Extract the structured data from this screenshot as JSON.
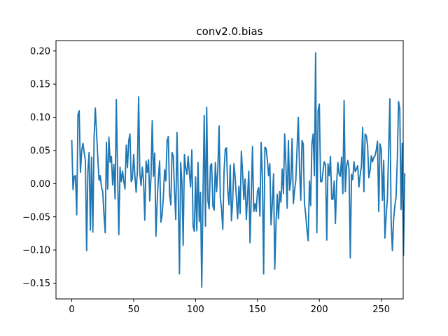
{
  "chart_data": {
    "type": "line",
    "title": "conv2.0.bias",
    "xlabel": "",
    "ylabel": "",
    "xlim": [
      -12.75,
      267.75
    ],
    "ylim": [
      -0.1737,
      0.2156
    ],
    "x_ticks": [
      0,
      50,
      100,
      150,
      200,
      250
    ],
    "y_ticks": [
      -0.15,
      -0.1,
      -0.05,
      0.0,
      0.05,
      0.1,
      0.15,
      0.2
    ],
    "x_tick_labels": [
      "0",
      "50",
      "100",
      "150",
      "200",
      "250"
    ],
    "y_tick_labels": [
      "−0.15",
      "−0.10",
      "−0.05",
      "0.00",
      "0.05",
      "0.10",
      "0.15",
      "0.20"
    ],
    "grid": false,
    "line_color": "#1f77b4",
    "series": [
      {
        "values": [
          0.065,
          -0.009,
          0.011,
          0.012,
          -0.047,
          0.104,
          0.11,
          0.017,
          0.049,
          0.061,
          0.047,
          0.035,
          -0.101,
          0.019,
          0.047,
          -0.07,
          0.04,
          -0.073,
          0.067,
          0.114,
          0.077,
          0.04,
          0.005,
          0.012,
          -0.005,
          -0.012,
          -0.046,
          -0.074,
          0.062,
          -0.008,
          0.07,
          0.032,
          0.041,
          -0.002,
          0.029,
          -0.023,
          0.127,
          0.014,
          -0.077,
          0.025,
          0.003,
          0.019,
          0.004,
          -0.008,
          0.058,
          0.024,
          0.065,
          0.075,
          0.003,
          0.008,
          0.044,
          0.012,
          -0.013,
          0.019,
          0.131,
          0.015,
          -0.003,
          0.025,
          0.004,
          -0.055,
          0.034,
          0.017,
          0.036,
          -0.026,
          0.01,
          0.095,
          0.011,
          0.046,
          -0.079,
          -0.027,
          0.01,
          0.034,
          -0.058,
          -0.047,
          -0.019,
          0.021,
          0.004,
          0.065,
          0.071,
          -0.016,
          -0.032,
          0.047,
          0.042,
          -0.011,
          -0.054,
          0.077,
          -0.01,
          -0.136,
          0.032,
          0.002,
          -0.093,
          0.044,
          0.024,
          0.014,
          0.041,
          0.016,
          -0.005,
          0.051,
          -0.064,
          -0.072,
          0.01,
          -0.071,
          0.032,
          -0.057,
          -0.013,
          -0.156,
          -0.02,
          0.103,
          -0.064,
          0.115,
          -0.026,
          -0.038,
          0.027,
          0.03,
          -0.034,
          -0.04,
          0.032,
          -0.012,
          0.022,
          0.087,
          -0.021,
          -0.038,
          -0.069,
          0.017,
          0.052,
          0.054,
          -0.01,
          -0.032,
          0.028,
          -0.056,
          -0.025,
          0.03,
          0.01,
          -0.022,
          -0.053,
          -0.004,
          -0.045,
          0.049,
          0.017,
          -0.024,
          0.007,
          -0.054,
          -0.019,
          0.019,
          -0.089,
          -0.02,
          0.056,
          -0.042,
          -0.03,
          -0.042,
          -0.011,
          -0.006,
          -0.049,
          0.062,
          0.009,
          -0.136,
          0.055,
          0.053,
          0.036,
          0.012,
          0.03,
          -0.062,
          -0.03,
          0.015,
          -0.129,
          -0.06,
          -0.016,
          -0.053,
          -0.012,
          -0.028,
          0.022,
          -0.015,
          0.075,
          0.029,
          -0.037,
          0.065,
          -0.01,
          0.004,
          0.068,
          -0.03,
          -0.01,
          0.005,
          0.053,
          0.1,
          0.022,
          -0.025,
          0.065,
          0.06,
          -0.03,
          -0.047,
          -0.07,
          -0.086,
          0.004,
          -0.033,
          0.06,
          0.075,
          0.012,
          0.197,
          -0.074,
          0.11,
          0.12,
          0.003,
          0.003,
          0.019,
          0.033,
          0.028,
          -0.085,
          0.03,
          0.012,
          0.041,
          -0.023,
          -0.024,
          0.004,
          -0.06,
          0.002,
          0.032,
          0.014,
          0.011,
          0.04,
          -0.015,
          0.125,
          -0.012,
          0.026,
          0.035,
          0.022,
          -0.112,
          0.014,
          0.006,
          0.033,
          0.018,
          0.022,
          0.027,
          -0.005,
          0.013,
          0.026,
          0.085,
          -0.012,
          0.075,
          0.072,
          0.057,
          0.009,
          0.02,
          0.042,
          0.033,
          0.04,
          0.042,
          0.051,
          0.064,
          -0.042,
          0.06,
          0.052,
          -0.025,
          0.035,
          -0.082,
          -0.048,
          -0.022,
          0.05,
          0.128,
          -0.056,
          -0.101,
          -0.054,
          -0.033,
          -0.02,
          0.037,
          0.124,
          0.113,
          -0.039,
          0.061,
          -0.108,
          0.015
        ]
      }
    ]
  }
}
